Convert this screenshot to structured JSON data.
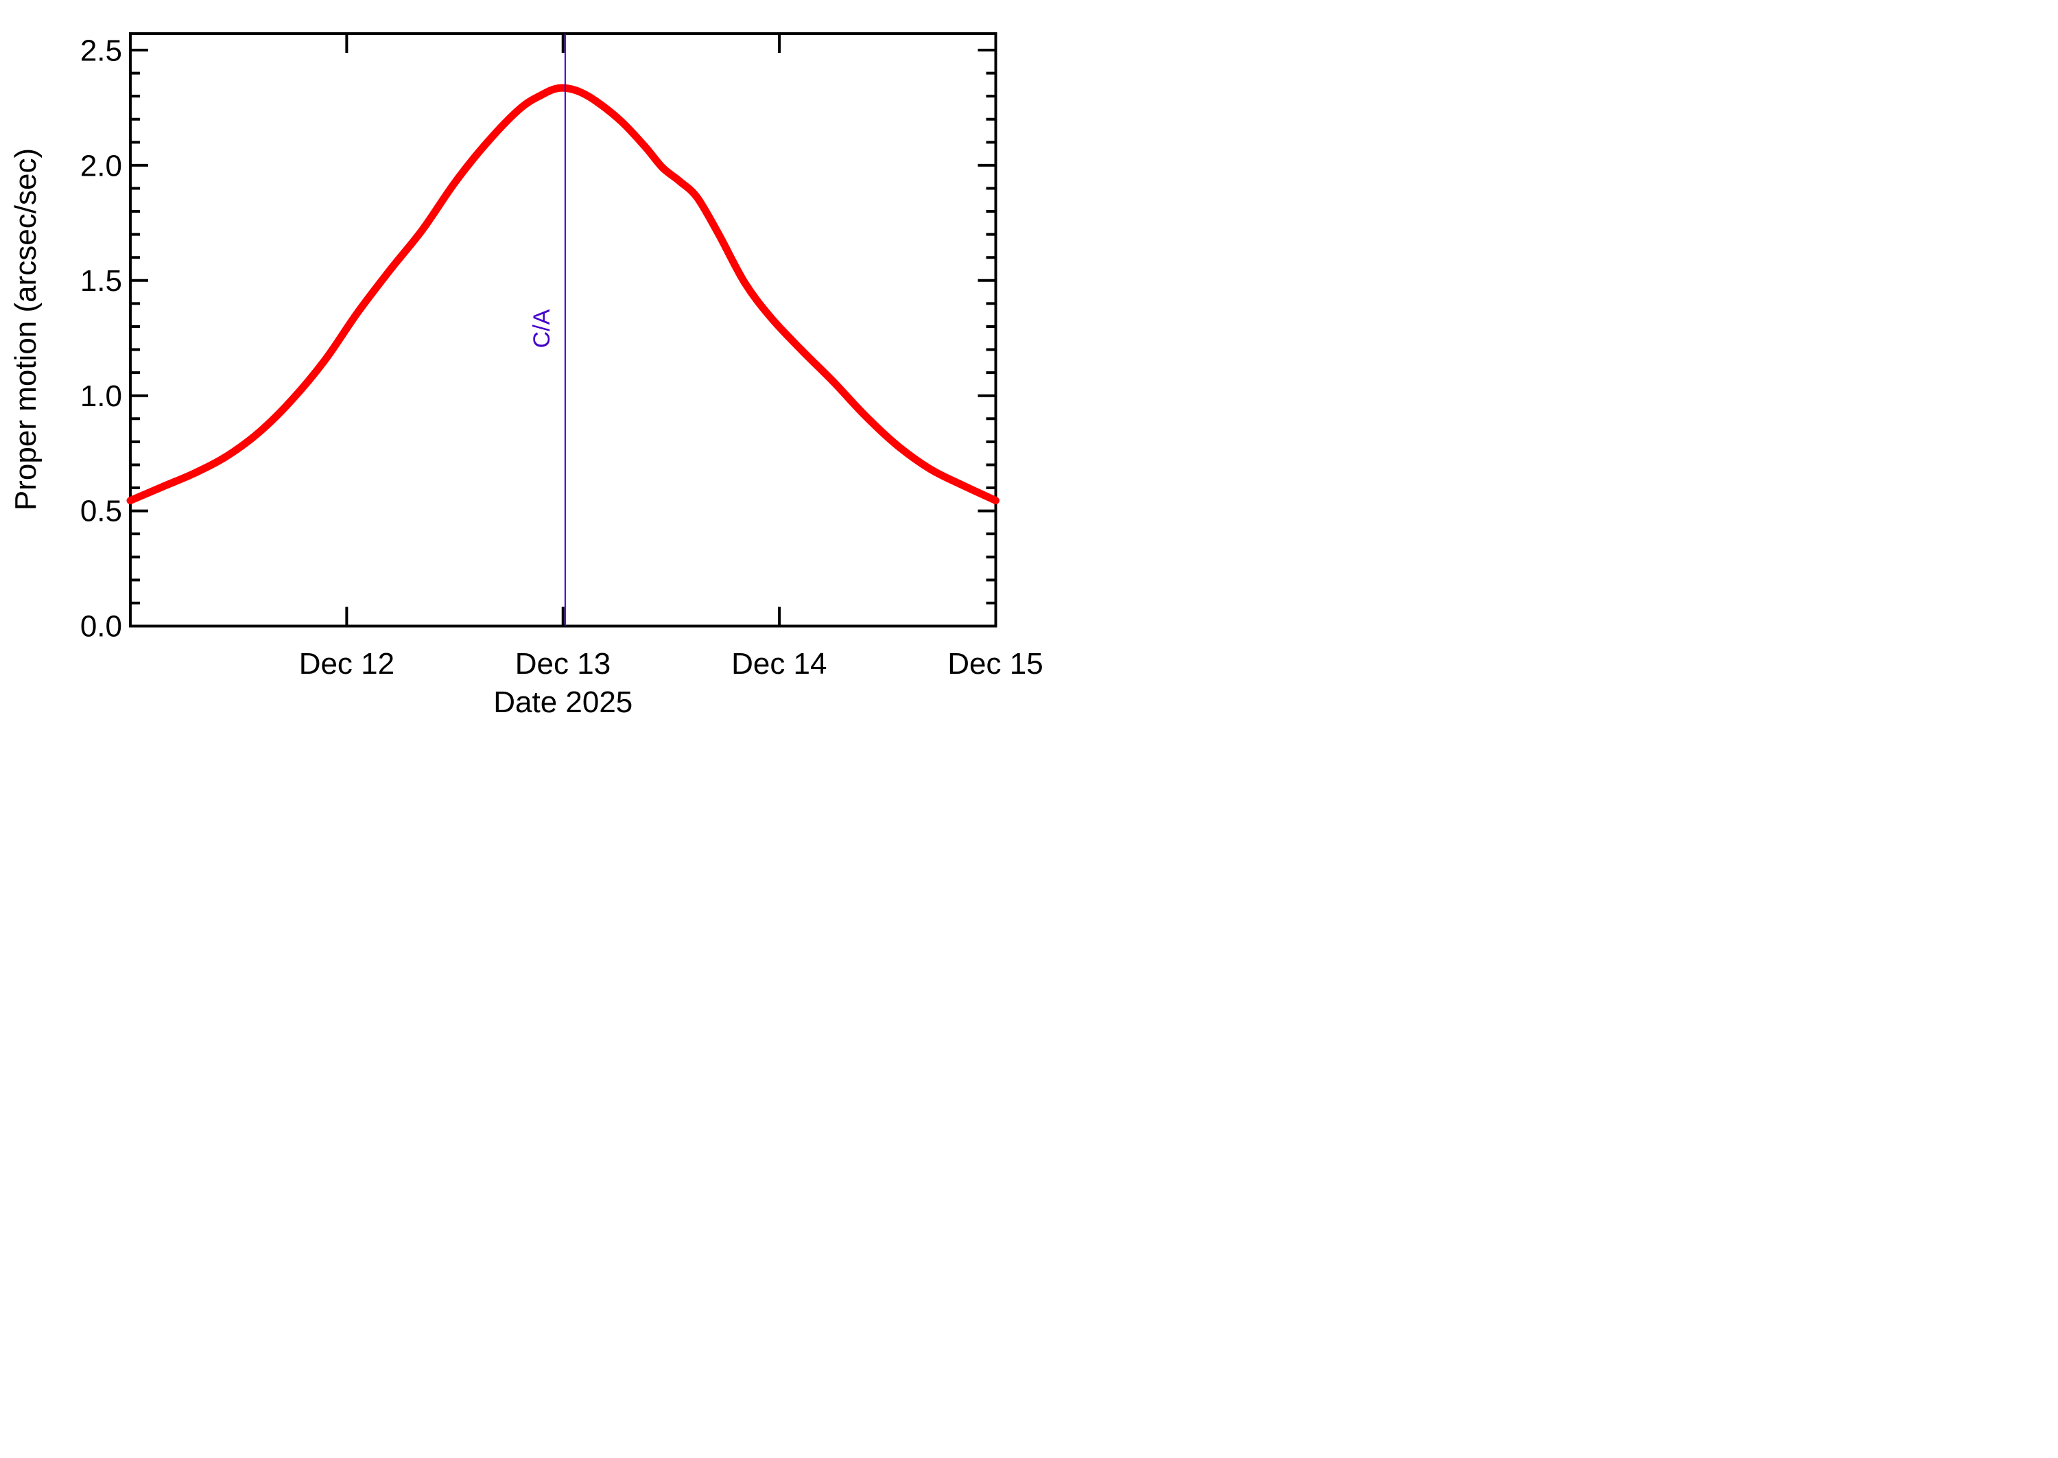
{
  "figure": {
    "background": "#ffffff",
    "frame_color": "#000000"
  },
  "chart_data": {
    "type": "line",
    "title": "",
    "xlabel": "Date 2025",
    "ylabel": "Proper motion (arcsec/sec)",
    "x_unit": "day of December 2025",
    "x_range": [
      11,
      15
    ],
    "ylim": [
      0,
      2.57
    ],
    "grid": false,
    "legend": "none",
    "x_ticks": [
      {
        "day": 12,
        "label": "Dec 12",
        "mark": true
      },
      {
        "day": 13,
        "label": "Dec 13",
        "mark": true
      },
      {
        "day": 14,
        "label": "Dec 14",
        "mark": true
      },
      {
        "day": 15,
        "label": "Dec 15",
        "mark": false
      }
    ],
    "y_ticks": [
      {
        "value": 0.0,
        "label": "0.0"
      },
      {
        "value": 0.5,
        "label": "0.5"
      },
      {
        "value": 1.0,
        "label": "1.0"
      },
      {
        "value": 1.5,
        "label": "1.5"
      },
      {
        "value": 2.0,
        "label": "2.0"
      },
      {
        "value": 2.5,
        "label": "2.5"
      }
    ],
    "y_minor_tick_step": 0.1,
    "series": [
      {
        "name": "proper motion",
        "color": "#ff0000",
        "peak": {
          "day": 12.98,
          "value": 2.33
        },
        "points": [
          [
            11.0,
            0.545
          ],
          [
            11.15,
            0.605
          ],
          [
            11.3,
            0.665
          ],
          [
            11.45,
            0.74
          ],
          [
            11.6,
            0.845
          ],
          [
            11.75,
            0.985
          ],
          [
            11.9,
            1.155
          ],
          [
            12.05,
            1.36
          ],
          [
            12.2,
            1.545
          ],
          [
            12.35,
            1.72
          ],
          [
            12.5,
            1.925
          ],
          [
            12.65,
            2.1
          ],
          [
            12.8,
            2.245
          ],
          [
            12.9,
            2.305
          ],
          [
            12.98,
            2.335
          ],
          [
            13.06,
            2.325
          ],
          [
            13.15,
            2.28
          ],
          [
            13.27,
            2.19
          ],
          [
            13.38,
            2.08
          ],
          [
            13.46,
            1.99
          ],
          [
            13.54,
            1.93
          ],
          [
            13.62,
            1.86
          ],
          [
            13.72,
            1.7
          ],
          [
            13.84,
            1.49
          ],
          [
            13.96,
            1.34
          ],
          [
            14.1,
            1.2
          ],
          [
            14.25,
            1.06
          ],
          [
            14.4,
            0.91
          ],
          [
            14.55,
            0.78
          ],
          [
            14.7,
            0.68
          ],
          [
            14.85,
            0.61
          ],
          [
            15.0,
            0.545
          ]
        ]
      }
    ],
    "annotation": {
      "label": "C/A",
      "day": 13.01,
      "color": "#4400cc",
      "orientation": "vertical-line-with-rotated-label"
    }
  }
}
